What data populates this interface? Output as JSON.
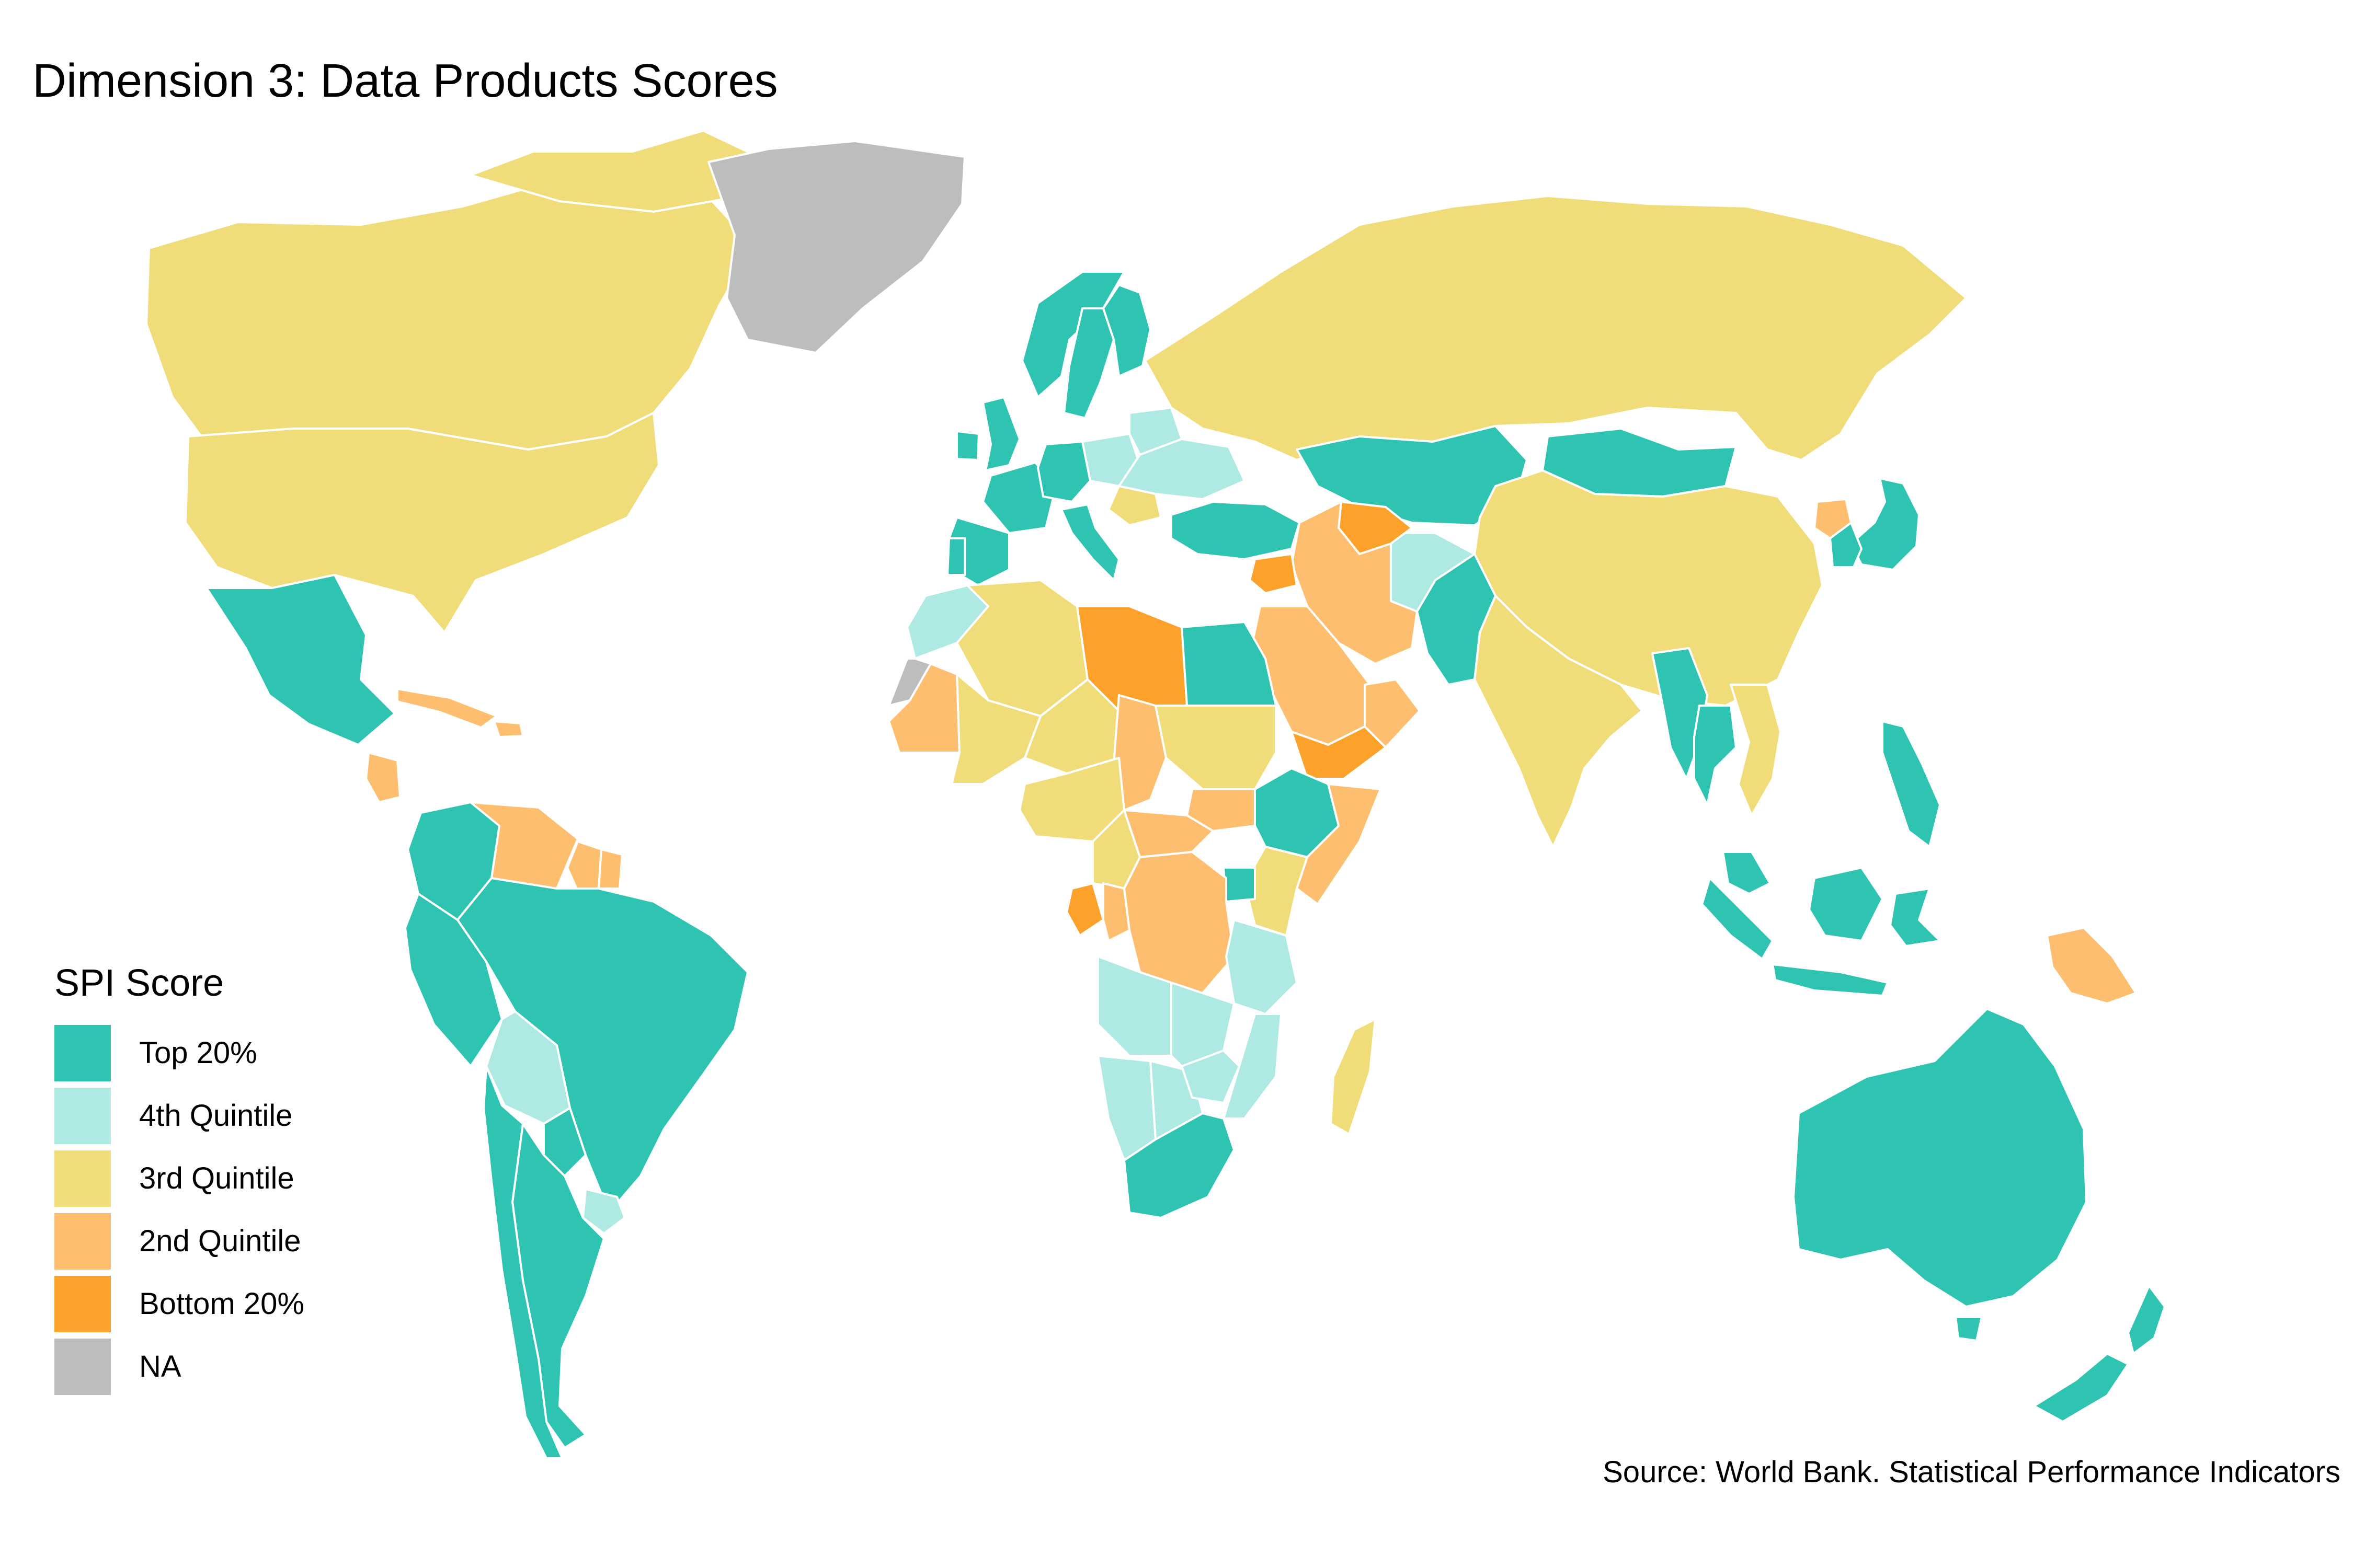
{
  "title": "Dimension 3: Data Products Scores",
  "source": "Source: World Bank. Statistical Performance Indicators",
  "legend": {
    "title": "SPI Score",
    "items": [
      {
        "label": "Top 20%",
        "color": "#2fc4b2"
      },
      {
        "label": "4th Quintile",
        "color": "#aeeae3"
      },
      {
        "label": "3rd Quintile",
        "color": "#f1dc7a"
      },
      {
        "label": "2nd Quintile",
        "color": "#fdbf6f"
      },
      {
        "label": "Bottom 20%",
        "color": "#fca12a"
      },
      {
        "label": "NA",
        "color": "#bdbdbd"
      }
    ]
  },
  "regions": [
    {
      "name": "Canada",
      "category": "3rd Quintile"
    },
    {
      "name": "United States",
      "category": "3rd Quintile"
    },
    {
      "name": "Greenland",
      "category": "NA"
    },
    {
      "name": "Mexico",
      "category": "Top 20%"
    },
    {
      "name": "Brazil",
      "category": "Top 20%"
    },
    {
      "name": "Colombia",
      "category": "Top 20%"
    },
    {
      "name": "Peru",
      "category": "Top 20%"
    },
    {
      "name": "Argentina",
      "category": "Top 20%"
    },
    {
      "name": "Chile",
      "category": "Top 20%"
    },
    {
      "name": "Bolivia",
      "category": "4th Quintile"
    },
    {
      "name": "Paraguay",
      "category": "Top 20%"
    },
    {
      "name": "Uruguay",
      "category": "4th Quintile"
    },
    {
      "name": "Venezuela",
      "category": "2nd Quintile"
    },
    {
      "name": "Guyana",
      "category": "2nd Quintile"
    },
    {
      "name": "Suriname",
      "category": "2nd Quintile"
    },
    {
      "name": "Nicaragua",
      "category": "2nd Quintile"
    },
    {
      "name": "Haiti",
      "category": "2nd Quintile"
    },
    {
      "name": "Cuba",
      "category": "2nd Quintile"
    },
    {
      "name": "Russia",
      "category": "3rd Quintile"
    },
    {
      "name": "China",
      "category": "3rd Quintile"
    },
    {
      "name": "India",
      "category": "3rd Quintile"
    },
    {
      "name": "Kazakhstan",
      "category": "Top 20%"
    },
    {
      "name": "Mongolia",
      "category": "Top 20%"
    },
    {
      "name": "Pakistan",
      "category": "Top 20%"
    },
    {
      "name": "Afghanistan",
      "category": "4th Quintile"
    },
    {
      "name": "Iran",
      "category": "2nd Quintile"
    },
    {
      "name": "Turkmenistan",
      "category": "Bottom 20%"
    },
    {
      "name": "Saudi Arabia",
      "category": "2nd Quintile"
    },
    {
      "name": "Yemen",
      "category": "Bottom 20%"
    },
    {
      "name": "Oman",
      "category": "2nd Quintile"
    },
    {
      "name": "Syria",
      "category": "Bottom 20%"
    },
    {
      "name": "Turkey",
      "category": "Top 20%"
    },
    {
      "name": "Japan",
      "category": "Top 20%"
    },
    {
      "name": "South Korea",
      "category": "Top 20%"
    },
    {
      "name": "North Korea",
      "category": "2nd Quintile"
    },
    {
      "name": "Myanmar",
      "category": "Top 20%"
    },
    {
      "name": "Thailand",
      "category": "Top 20%"
    },
    {
      "name": "Vietnam",
      "category": "3rd Quintile"
    },
    {
      "name": "Philippines",
      "category": "Top 20%"
    },
    {
      "name": "Indonesia",
      "category": "Top 20%"
    },
    {
      "name": "Malaysia",
      "category": "Top 20%"
    },
    {
      "name": "Papua New Guinea",
      "category": "2nd Quintile"
    },
    {
      "name": "Australia",
      "category": "Top 20%"
    },
    {
      "name": "New Zealand",
      "category": "Top 20%"
    },
    {
      "name": "Norway",
      "category": "Top 20%"
    },
    {
      "name": "Sweden",
      "category": "Top 20%"
    },
    {
      "name": "Finland",
      "category": "Top 20%"
    },
    {
      "name": "United Kingdom",
      "category": "Top 20%"
    },
    {
      "name": "Ireland",
      "category": "Top 20%"
    },
    {
      "name": "France",
      "category": "Top 20%"
    },
    {
      "name": "Spain",
      "category": "Top 20%"
    },
    {
      "name": "Portugal",
      "category": "Top 20%"
    },
    {
      "name": "Italy",
      "category": "Top 20%"
    },
    {
      "name": "Germany",
      "category": "Top 20%"
    },
    {
      "name": "Poland",
      "category": "4th Quintile"
    },
    {
      "name": "Ukraine",
      "category": "4th Quintile"
    },
    {
      "name": "Belarus",
      "category": "4th Quintile"
    },
    {
      "name": "Romania",
      "category": "3rd Quintile"
    },
    {
      "name": "Morocco",
      "category": "4th Quintile"
    },
    {
      "name": "Algeria",
      "category": "3rd Quintile"
    },
    {
      "name": "Libya",
      "category": "Bottom 20%"
    },
    {
      "name": "Egypt",
      "category": "Top 20%"
    },
    {
      "name": "Mauritania",
      "category": "2nd Quintile"
    },
    {
      "name": "Mali",
      "category": "3rd Quintile"
    },
    {
      "name": "Niger",
      "category": "3rd Quintile"
    },
    {
      "name": "Chad",
      "category": "2nd Quintile"
    },
    {
      "name": "Sudan",
      "category": "3rd Quintile"
    },
    {
      "name": "South Sudan",
      "category": "2nd Quintile"
    },
    {
      "name": "Ethiopia",
      "category": "Top 20%"
    },
    {
      "name": "Somalia",
      "category": "2nd Quintile"
    },
    {
      "name": "Kenya",
      "category": "3rd Quintile"
    },
    {
      "name": "Uganda",
      "category": "Top 20%"
    },
    {
      "name": "Nigeria",
      "category": "3rd Quintile"
    },
    {
      "name": "Cameroon",
      "category": "3rd Quintile"
    },
    {
      "name": "Central African Republic",
      "category": "2nd Quintile"
    },
    {
      "name": "Gabon",
      "category": "Bottom 20%"
    },
    {
      "name": "Congo",
      "category": "2nd Quintile"
    },
    {
      "name": "DR Congo",
      "category": "2nd Quintile"
    },
    {
      "name": "Tanzania",
      "category": "4th Quintile"
    },
    {
      "name": "Angola",
      "category": "4th Quintile"
    },
    {
      "name": "Zambia",
      "category": "4th Quintile"
    },
    {
      "name": "Mozambique",
      "category": "4th Quintile"
    },
    {
      "name": "Namibia",
      "category": "4th Quintile"
    },
    {
      "name": "Botswana",
      "category": "4th Quintile"
    },
    {
      "name": "Zimbabwe",
      "category": "4th Quintile"
    },
    {
      "name": "South Africa",
      "category": "Top 20%"
    },
    {
      "name": "Madagascar",
      "category": "3rd Quintile"
    },
    {
      "name": "Western Sahara",
      "category": "NA"
    }
  ]
}
